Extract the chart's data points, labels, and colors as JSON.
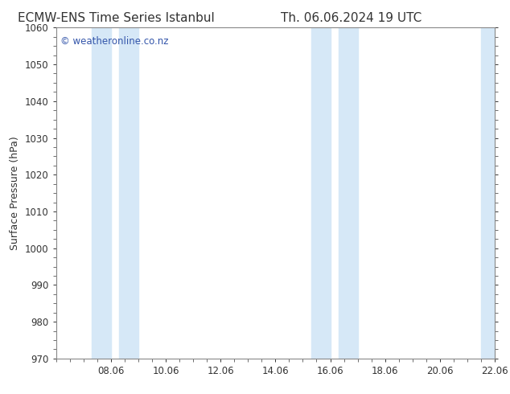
{
  "title_left": "ECMW-ENS Time Series Istanbul",
  "title_right": "Th. 06.06.2024 19 UTC",
  "ylabel": "Surface Pressure (hPa)",
  "ylim": [
    970,
    1060
  ],
  "yticks": [
    970,
    980,
    990,
    1000,
    1010,
    1020,
    1030,
    1040,
    1050,
    1060
  ],
  "xlim": [
    0,
    16
  ],
  "xtick_labels": [
    "08.06",
    "10.06",
    "12.06",
    "14.06",
    "16.06",
    "18.06",
    "20.06",
    "22.06"
  ],
  "xtick_positions": [
    2,
    4,
    6,
    8,
    10,
    12,
    14,
    16
  ],
  "shaded_bands": [
    {
      "x_start": 1.3,
      "x_end": 2.0
    },
    {
      "x_start": 2.3,
      "x_end": 3.0
    },
    {
      "x_start": 9.3,
      "x_end": 10.0
    },
    {
      "x_start": 10.3,
      "x_end": 11.0
    },
    {
      "x_start": 15.5,
      "x_end": 16.0
    }
  ],
  "band_color": "#D6E8F7",
  "background_color": "#ffffff",
  "watermark_text": "© weatheronline.co.nz",
  "watermark_color": "#3355AA",
  "title_color": "#333333",
  "axis_color": "#888888",
  "tick_color": "#333333",
  "title_fontsize": 11,
  "ylabel_fontsize": 9,
  "tick_fontsize": 8.5,
  "watermark_fontsize": 8.5
}
